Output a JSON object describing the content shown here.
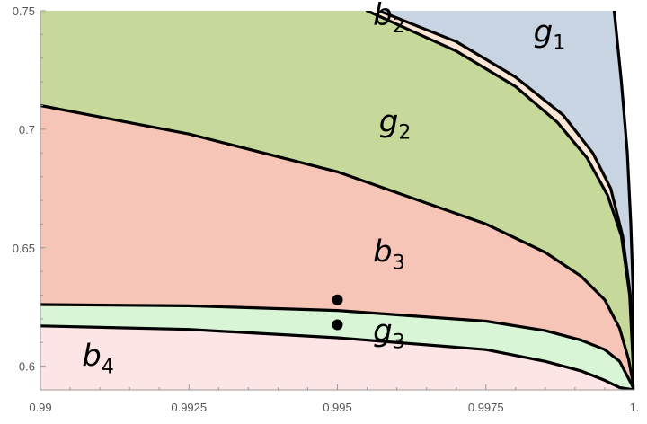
{
  "chart_data": {
    "type": "area",
    "title": "",
    "xlabel": "",
    "ylabel": "",
    "xlim": [
      0.99,
      1.0
    ],
    "ylim": [
      0.59,
      0.75
    ],
    "grid": false,
    "x_ticks": [
      0.99,
      0.9925,
      0.995,
      0.9975,
      1.0
    ],
    "x_tick_labels": [
      "0.99",
      "0.9925",
      "0.995",
      "0.9975",
      "1."
    ],
    "y_ticks": [
      0.6,
      0.65,
      0.7,
      0.75
    ],
    "y_tick_labels": [
      "0.6",
      "0.65",
      "0.7",
      "0.75"
    ],
    "curves": [
      {
        "name": "g1-boundary",
        "points": [
          [
            0.99966,
            0.75
          ],
          [
            0.99978,
            0.72
          ],
          [
            0.99988,
            0.69
          ],
          [
            0.99994,
            0.66
          ],
          [
            0.99998,
            0.63
          ],
          [
            1.0,
            0.59
          ]
        ]
      },
      {
        "name": "b2-upper-boundary",
        "points": [
          [
            0.9957,
            0.75
          ],
          [
            0.997,
            0.737
          ],
          [
            0.998,
            0.722
          ],
          [
            0.9988,
            0.706
          ],
          [
            0.9993,
            0.69
          ],
          [
            0.9996,
            0.675
          ],
          [
            0.9998,
            0.655
          ],
          [
            0.99993,
            0.63
          ],
          [
            1.0,
            0.59
          ]
        ]
      },
      {
        "name": "b2-lower-boundary",
        "points": [
          [
            0.9955,
            0.75
          ],
          [
            0.997,
            0.733
          ],
          [
            0.998,
            0.718
          ],
          [
            0.9987,
            0.703
          ],
          [
            0.9992,
            0.688
          ],
          [
            0.99955,
            0.672
          ],
          [
            0.99978,
            0.655
          ],
          [
            0.99992,
            0.63
          ],
          [
            1.0,
            0.59
          ]
        ]
      },
      {
        "name": "g2-lower-boundary",
        "points": [
          [
            0.99,
            0.71
          ],
          [
            0.9925,
            0.698
          ],
          [
            0.995,
            0.682
          ],
          [
            0.9975,
            0.66
          ],
          [
            0.9985,
            0.648
          ],
          [
            0.9991,
            0.638
          ],
          [
            0.9995,
            0.628
          ],
          [
            0.99975,
            0.616
          ],
          [
            0.9999,
            0.603
          ],
          [
            1.0,
            0.59
          ]
        ]
      },
      {
        "name": "g3-upper-boundary",
        "points": [
          [
            0.99,
            0.626
          ],
          [
            0.9925,
            0.6255
          ],
          [
            0.995,
            0.6235
          ],
          [
            0.9975,
            0.619
          ],
          [
            0.9985,
            0.615
          ],
          [
            0.9991,
            0.611
          ],
          [
            0.9995,
            0.607
          ],
          [
            0.99975,
            0.602
          ],
          [
            1.0,
            0.59
          ]
        ]
      },
      {
        "name": "g3-lower-boundary",
        "points": [
          [
            0.99,
            0.617
          ],
          [
            0.9925,
            0.6155
          ],
          [
            0.995,
            0.612
          ],
          [
            0.9975,
            0.607
          ],
          [
            0.9985,
            0.602
          ],
          [
            0.9991,
            0.598
          ],
          [
            0.9995,
            0.594
          ],
          [
            0.99975,
            0.591
          ],
          [
            1.0,
            0.59
          ]
        ]
      }
    ],
    "region_colors": {
      "g1": "#c9d4e3",
      "b2": "#fbe6d6",
      "g2": "#c7d89b",
      "b3": "#f6c5b8",
      "g3": "#d8f5d6",
      "b4": "#fde5e5"
    },
    "region_labels": [
      {
        "base": "g",
        "sub": "1",
        "x": 0.9983,
        "y": 0.737
      },
      {
        "base": "b",
        "sub": "2",
        "x": 0.9956,
        "y": 0.744
      },
      {
        "base": "g",
        "sub": "2",
        "x": 0.9957,
        "y": 0.699
      },
      {
        "base": "b",
        "sub": "3",
        "x": 0.9956,
        "y": 0.644
      },
      {
        "base": "g",
        "sub": "3",
        "x": 0.9956,
        "y": 0.6107
      },
      {
        "base": "b",
        "sub": "4",
        "x": 0.9907,
        "y": 0.6
      }
    ],
    "points": [
      {
        "x": 0.995,
        "y": 0.628
      },
      {
        "x": 0.995,
        "y": 0.6175
      }
    ]
  }
}
